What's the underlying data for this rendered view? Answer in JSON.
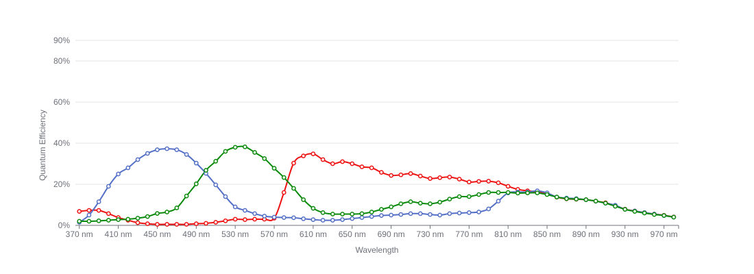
{
  "chart_data": {
    "type": "line",
    "xlabel": "Wavelength",
    "ylabel": "Quantum Efficiency",
    "x_unit": "nm",
    "ylim": [
      0,
      90
    ],
    "xlim": [
      366,
      985
    ],
    "x_ticks": [
      370,
      410,
      450,
      490,
      530,
      570,
      610,
      650,
      690,
      730,
      770,
      810,
      850,
      890,
      930,
      970
    ],
    "x_tick_labels": [
      "370 nm",
      "410 nm",
      "450 nm",
      "490 nm",
      "530 nm",
      "570 nm",
      "610 nm",
      "650 nm",
      "690 nm",
      "730 nm",
      "770 nm",
      "810 nm",
      "850 nm",
      "890 nm",
      "930 nm",
      "970 nm"
    ],
    "y_ticks": [
      0,
      20,
      40,
      60,
      80,
      90
    ],
    "y_tick_labels": [
      "0%",
      "20%",
      "40%",
      "60%",
      "80%",
      "90%"
    ],
    "grid": true,
    "legend": "none",
    "series": [
      {
        "color": "#ee1111",
        "x": [
          370,
          380,
          390,
          400,
          410,
          420,
          430,
          440,
          450,
          460,
          470,
          480,
          490,
          500,
          510,
          520,
          530,
          540,
          550,
          560,
          570,
          580,
          590,
          600,
          610,
          620,
          630,
          640,
          650,
          660,
          670,
          680,
          690,
          700,
          710,
          720,
          730,
          740,
          750,
          760,
          770,
          780,
          790,
          800,
          810,
          820,
          830,
          840,
          850,
          860,
          870,
          880,
          890,
          900,
          910,
          920,
          930,
          940,
          950,
          960,
          970,
          980
        ],
        "values": [
          6.8,
          7.3,
          7.3,
          5.7,
          3.8,
          2.5,
          1.3,
          0.8,
          0.5,
          0.5,
          0.5,
          0.5,
          0.8,
          1.0,
          1.5,
          2.2,
          3.0,
          2.8,
          3.0,
          3.0,
          3.5,
          16.0,
          30.3,
          33.8,
          34.8,
          32.0,
          30.0,
          31.0,
          30.0,
          28.5,
          28.0,
          25.8,
          24.3,
          24.6,
          25.2,
          24.0,
          22.8,
          23.2,
          23.5,
          22.5,
          21.1,
          21.4,
          21.5,
          20.7,
          19.0,
          17.5,
          16.8,
          16.3,
          15.4,
          13.7,
          12.9,
          12.7,
          12.5,
          11.8,
          11.0,
          9.6,
          7.9,
          7.0,
          6.2,
          5.5,
          4.9,
          4.1
        ]
      },
      {
        "color": "#5470c6",
        "x": [
          370,
          380,
          390,
          400,
          410,
          420,
          430,
          440,
          450,
          460,
          470,
          480,
          490,
          500,
          510,
          520,
          530,
          540,
          550,
          560,
          570,
          580,
          590,
          600,
          610,
          620,
          630,
          640,
          650,
          660,
          670,
          680,
          690,
          700,
          710,
          720,
          730,
          740,
          750,
          760,
          770,
          780,
          790,
          800,
          810,
          820,
          830,
          840,
          850,
          860,
          870,
          880,
          890,
          900,
          910,
          920,
          930,
          940,
          950,
          960,
          970,
          980
        ],
        "values": [
          1.5,
          5.0,
          11.5,
          19.0,
          25.0,
          28.0,
          32.0,
          35.0,
          36.8,
          37.3,
          36.8,
          34.5,
          30.3,
          25.3,
          19.7,
          14.0,
          9.0,
          7.3,
          5.7,
          4.5,
          4.0,
          3.8,
          3.7,
          3.2,
          2.8,
          2.5,
          2.5,
          2.8,
          3.3,
          3.8,
          4.3,
          4.8,
          5.0,
          5.3,
          5.7,
          5.7,
          5.3,
          5.0,
          5.7,
          6.0,
          6.2,
          6.5,
          8.0,
          11.8,
          15.8,
          16.2,
          16.2,
          16.8,
          15.8,
          13.8,
          13.3,
          13.0,
          12.5,
          11.8,
          10.8,
          9.8,
          7.8,
          7.0,
          6.2,
          5.5,
          4.8,
          4.0
        ]
      },
      {
        "color": "#0a8a0a",
        "x": [
          370,
          380,
          390,
          400,
          410,
          420,
          430,
          440,
          450,
          460,
          470,
          480,
          490,
          500,
          510,
          520,
          530,
          540,
          550,
          560,
          570,
          580,
          590,
          600,
          610,
          620,
          630,
          640,
          650,
          660,
          670,
          680,
          690,
          700,
          710,
          720,
          730,
          740,
          750,
          760,
          770,
          780,
          790,
          800,
          810,
          820,
          830,
          840,
          850,
          860,
          870,
          880,
          890,
          900,
          910,
          920,
          930,
          940,
          950,
          960,
          970,
          980
        ],
        "values": [
          2.0,
          2.0,
          2.2,
          2.5,
          2.8,
          3.0,
          3.5,
          4.3,
          5.8,
          6.5,
          8.5,
          14.3,
          20.2,
          26.8,
          31.2,
          36.0,
          38.0,
          38.2,
          35.5,
          32.5,
          27.8,
          23.3,
          18.0,
          12.5,
          8.3,
          6.2,
          5.5,
          5.5,
          5.5,
          5.7,
          6.5,
          7.8,
          9.0,
          10.5,
          11.5,
          10.8,
          10.5,
          11.3,
          12.8,
          14.0,
          14.0,
          15.0,
          16.0,
          16.0,
          16.0,
          15.7,
          15.8,
          15.8,
          15.0,
          13.8,
          13.0,
          12.8,
          12.5,
          11.8,
          10.8,
          9.3,
          7.8,
          6.8,
          6.0,
          5.3,
          4.8,
          4.0
        ]
      }
    ]
  }
}
